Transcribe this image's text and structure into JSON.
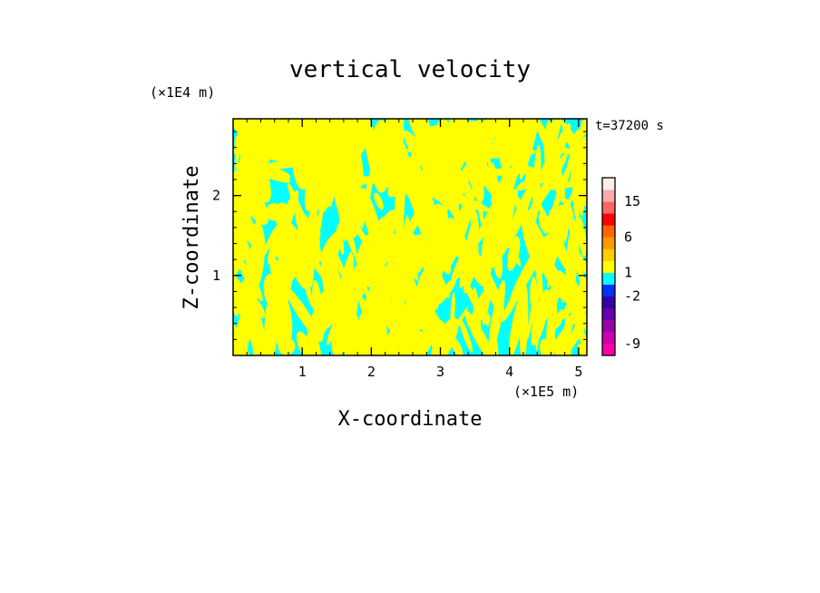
{
  "chart_data": {
    "type": "heatmap",
    "title": "vertical velocity",
    "xlabel": "X-coordinate",
    "ylabel": "Z-coordinate",
    "x_unit": "(×1E5 m)",
    "z_unit": "(×1E4 m)",
    "time_label": "t=37200 s",
    "xlim": [
      0,
      5.12
    ],
    "zlim": [
      0,
      2.96
    ],
    "x_ticks": [
      1,
      2,
      3,
      4,
      5
    ],
    "x_tick_labels": [
      "1",
      "2",
      "3",
      "4",
      "5"
    ],
    "z_ticks": [
      1,
      2
    ],
    "z_tick_labels": [
      "1",
      "2"
    ],
    "field": {
      "positive_color": "#ffff00",
      "negative_color": "#00ffff",
      "description_values": "alternating updraft/downdraft bands"
    },
    "colorbar": {
      "levels": [
        {
          "color": "#ff00aa"
        },
        {
          "color": "#cc00aa"
        },
        {
          "color": "#9900aa"
        },
        {
          "color": "#6600aa"
        },
        {
          "color": "#3300aa"
        },
        {
          "color": "#0033ff"
        },
        {
          "color": "#00ffff"
        },
        {
          "color": "#ffff00"
        },
        {
          "color": "#ffcc00"
        },
        {
          "color": "#ff9900"
        },
        {
          "color": "#ff6600"
        },
        {
          "color": "#ff0000"
        },
        {
          "color": "#ff6666"
        },
        {
          "color": "#ffaaaa"
        },
        {
          "color": "#ffeeee"
        }
      ],
      "tick_labels": [
        "-9",
        "-2",
        "1",
        "6",
        "15"
      ],
      "tick_after_level": [
        1,
        5,
        7,
        10,
        13
      ]
    }
  }
}
